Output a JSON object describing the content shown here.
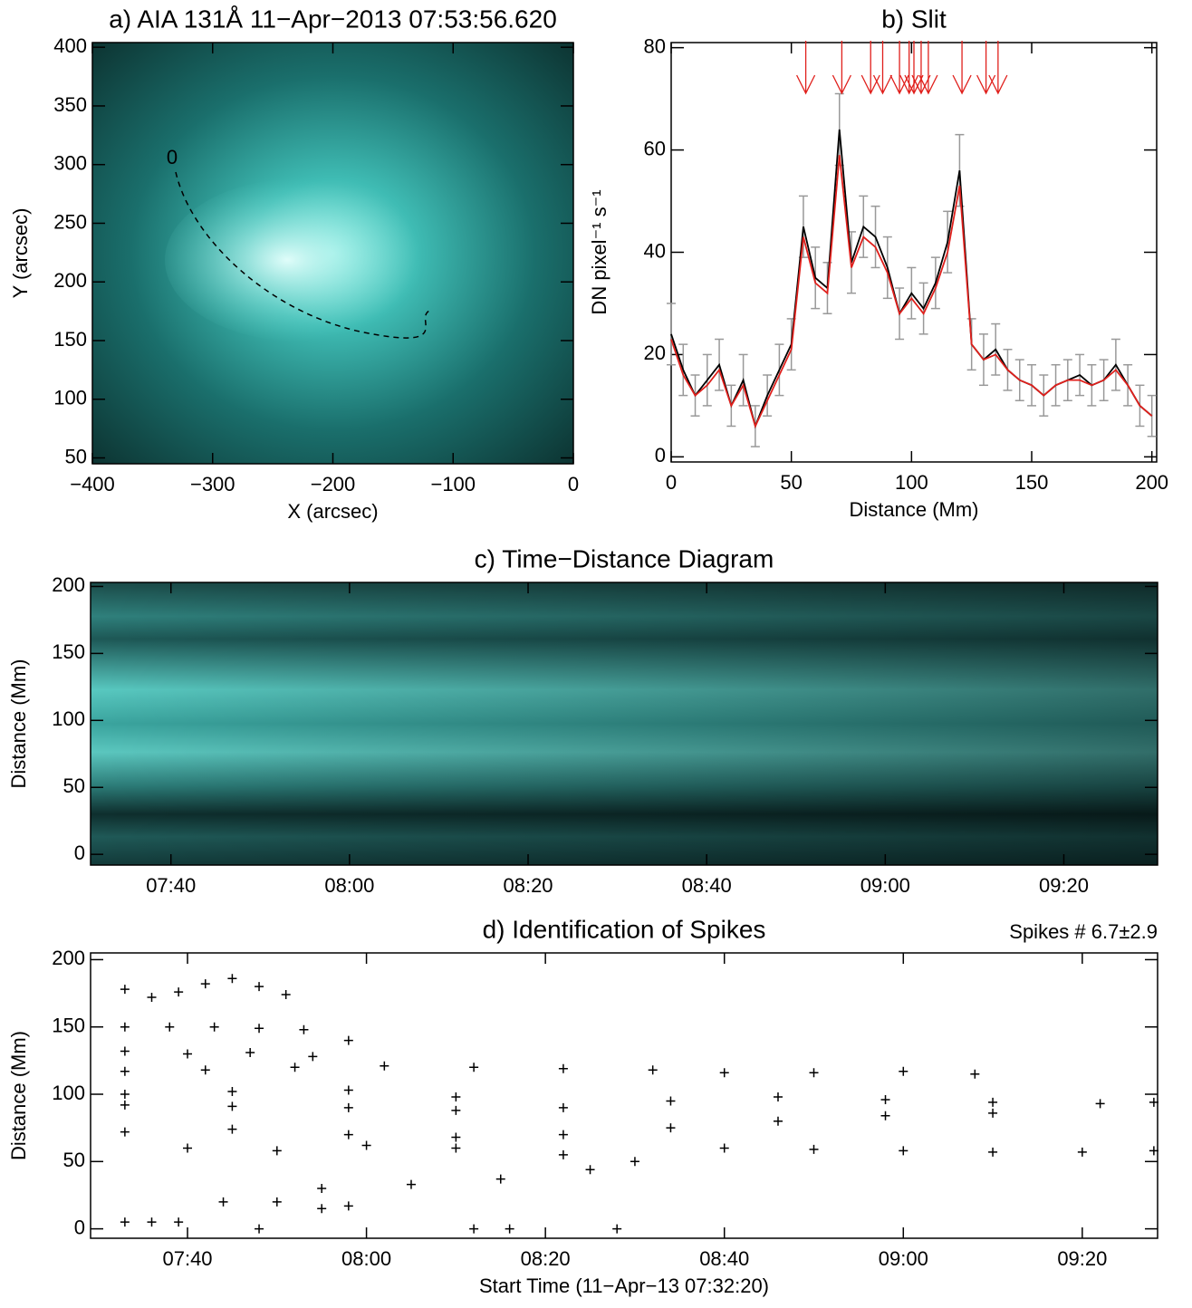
{
  "chart_data": [
    {
      "type": "image",
      "title": "a) AIA 131Å 11−Apr−2013 07:53:56.620",
      "xlabel": "X (arcsec)",
      "ylabel": "Y (arcsec)",
      "annotation": "0",
      "xlim": [
        -400,
        0
      ],
      "ylim": [
        45,
        404
      ],
      "xticks": [
        {
          "value": -400,
          "label": "−400"
        },
        {
          "value": -300,
          "label": "−300"
        },
        {
          "value": -200,
          "label": "−200"
        },
        {
          "value": -100,
          "label": "−100"
        },
        0
      ],
      "yticks": [
        50,
        100,
        150,
        200,
        250,
        300,
        350,
        400
      ]
    },
    {
      "type": "line",
      "title": "b) Slit",
      "xlabel": "Distance (Mm)",
      "ylabel": "DN pixel⁻¹ s⁻¹",
      "xlim": [
        0,
        202
      ],
      "ylim": [
        -1,
        81
      ],
      "xticks": [
        0,
        50,
        100,
        150,
        200
      ],
      "yticks": [
        0,
        20,
        40,
        60,
        80
      ],
      "x": [
        0,
        5,
        10,
        15,
        20,
        25,
        30,
        35,
        40,
        45,
        50,
        55,
        60,
        65,
        70,
        75,
        80,
        85,
        90,
        95,
        100,
        105,
        110,
        115,
        120,
        125,
        130,
        135,
        140,
        145,
        150,
        155,
        160,
        165,
        170,
        175,
        180,
        185,
        190,
        195,
        200
      ],
      "series": [
        {
          "color": "#000000",
          "values": [
            24,
            17,
            12,
            15,
            18,
            10,
            15,
            6,
            12,
            17,
            22,
            45,
            35,
            33,
            64,
            38,
            45,
            43,
            37,
            28,
            32,
            29,
            34,
            42,
            56,
            22,
            19,
            21,
            17,
            15,
            14,
            12,
            14,
            15,
            16,
            14,
            15,
            18,
            14,
            10,
            8
          ],
          "errors": [
            6,
            5,
            4,
            5,
            5,
            4,
            5,
            4,
            4,
            5,
            5,
            6,
            6,
            5,
            7,
            6,
            6,
            6,
            6,
            5,
            5,
            5,
            5,
            6,
            7,
            5,
            5,
            5,
            4,
            4,
            4,
            4,
            4,
            4,
            4,
            4,
            4,
            5,
            4,
            4,
            4
          ]
        },
        {
          "color": "#e0201c",
          "values": [
            23,
            16,
            12,
            14,
            17,
            10,
            14,
            6,
            11,
            16,
            21,
            43,
            34,
            32,
            59,
            37,
            43,
            41,
            36,
            28,
            31,
            28,
            33,
            40,
            53,
            22,
            19,
            20,
            17,
            15,
            14,
            12,
            14,
            15,
            15,
            14,
            15,
            17,
            14,
            10,
            8
          ]
        }
      ],
      "arrows": [
        56,
        71,
        83,
        88,
        95,
        99,
        101,
        104,
        107,
        121,
        131,
        136
      ]
    },
    {
      "type": "image",
      "title": "c) Time−Distance Diagram",
      "ylabel": "Distance (Mm)",
      "xlim": [
        "07:31",
        "09:30:30"
      ],
      "ylim": [
        -8,
        203
      ],
      "xticks": [
        "07:40",
        "08:00",
        "08:20",
        "08:40",
        "09:00",
        "09:20"
      ],
      "yticks": [
        0,
        50,
        100,
        150,
        200
      ]
    },
    {
      "type": "scatter",
      "title": "d) Identification of Spikes",
      "annotation": "Spikes # 6.7±2.9",
      "xlabel": "Start Time (11−Apr−13 07:32:20)",
      "ylabel": "Distance (Mm)",
      "xlim": [
        "07:29:10",
        "09:28:25"
      ],
      "ylim": [
        -7,
        205
      ],
      "xticks": [
        "07:40",
        "08:00",
        "08:20",
        "08:40",
        "09:00",
        "09:20"
      ],
      "yticks": [
        0,
        50,
        100,
        150,
        200
      ],
      "x": [
        "07:33",
        "07:36",
        "07:39",
        "07:42",
        "07:45",
        "07:48",
        "07:51",
        "07:33",
        "07:38",
        "07:43",
        "07:48",
        "07:53",
        "07:58",
        "07:33",
        "07:40",
        "07:47",
        "07:54",
        "07:33",
        "07:42",
        "07:52",
        "08:02",
        "08:12",
        "08:22",
        "08:32",
        "08:40",
        "08:50",
        "09:00",
        "09:08",
        "07:33",
        "07:45",
        "07:58",
        "08:10",
        "07:33",
        "07:45",
        "07:58",
        "08:10",
        "08:22",
        "08:34",
        "08:46",
        "08:58",
        "09:10",
        "09:22",
        "09:28",
        "07:33",
        "07:45",
        "07:58",
        "08:10",
        "08:22",
        "08:34",
        "08:46",
        "08:58",
        "09:10",
        "07:40",
        "07:50",
        "08:00",
        "08:10",
        "08:22",
        "08:30",
        "08:40",
        "08:50",
        "09:00",
        "09:10",
        "09:20",
        "09:28",
        "07:55",
        "08:05",
        "08:15",
        "08:25",
        "07:55",
        "07:58",
        "07:44",
        "07:50",
        "07:33",
        "07:36",
        "07:39",
        "07:48",
        "08:12",
        "08:16",
        "08:28"
      ],
      "y": [
        178,
        172,
        176,
        182,
        186,
        180,
        174,
        150,
        150,
        150,
        149,
        148,
        140,
        132,
        130,
        131,
        128,
        117,
        118,
        120,
        121,
        120,
        119,
        118,
        116,
        116,
        117,
        115,
        100,
        102,
        103,
        98,
        92,
        91,
        90,
        88,
        90,
        95,
        98,
        96,
        94,
        93,
        94,
        72,
        74,
        70,
        68,
        70,
        75,
        80,
        84,
        86,
        60,
        58,
        62,
        60,
        55,
        50,
        60,
        59,
        58,
        57,
        57,
        58,
        30,
        33,
        37,
        44,
        15,
        17,
        20,
        20,
        5,
        5,
        5,
        0,
        0,
        0,
        0
      ]
    }
  ]
}
